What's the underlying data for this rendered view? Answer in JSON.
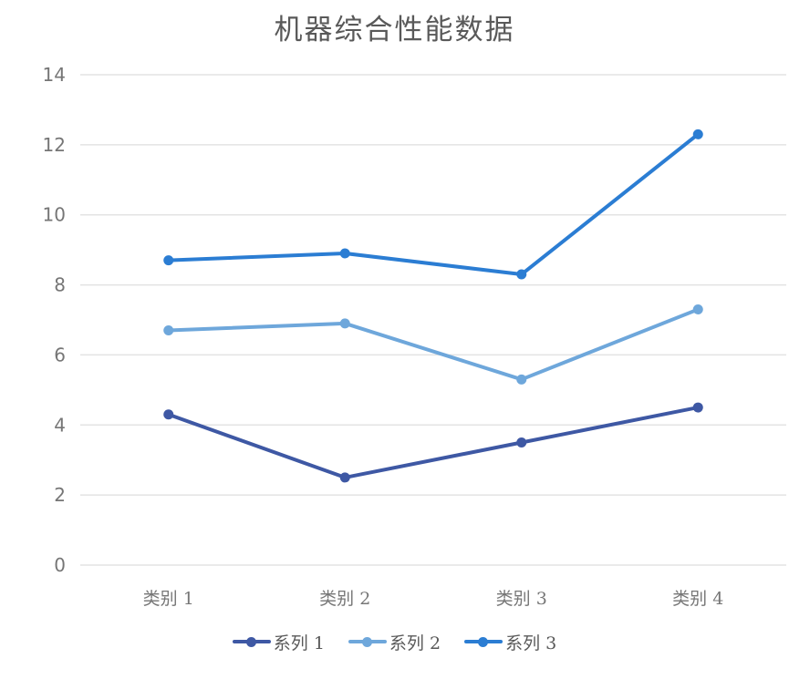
{
  "chart_data": {
    "type": "line",
    "title": "机器综合性能数据",
    "categories": [
      "类别 1",
      "类别 2",
      "类别 3",
      "类别 4"
    ],
    "series": [
      {
        "name": "系列 1",
        "color": "#3E58A4",
        "values": [
          4.3,
          2.5,
          3.5,
          4.5
        ]
      },
      {
        "name": "系列 2",
        "color": "#6EA7DB",
        "values": [
          6.7,
          6.9,
          5.3,
          7.3
        ]
      },
      {
        "name": "系列 3",
        "color": "#2B7DD3",
        "values": [
          8.7,
          8.9,
          8.3,
          12.3
        ]
      }
    ],
    "ylim": [
      0,
      14
    ],
    "ytick_step": 2,
    "ytick_labels": [
      "0",
      "2",
      "4",
      "6",
      "8",
      "10",
      "12",
      "14"
    ],
    "grid": "horizontal",
    "marker": "circle",
    "legend_position": "bottom",
    "colors": {
      "grid_line": "#E3E3E3",
      "axis_text": "#767676",
      "title_text": "#595959",
      "background": "#FFFFFF"
    }
  }
}
